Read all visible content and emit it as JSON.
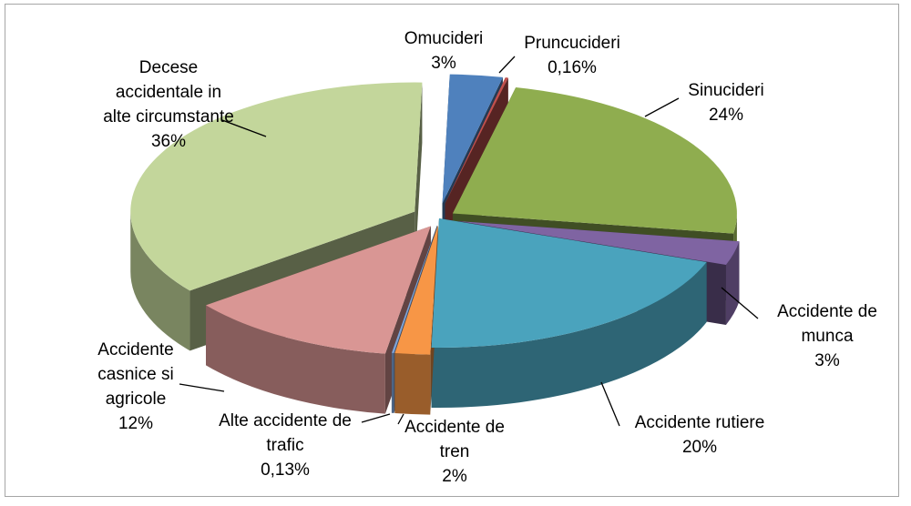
{
  "chart_data": {
    "type": "pie",
    "style": "3d-exploded",
    "slices": [
      {
        "name": "Omucideri",
        "label_lines": [
          "Omucideri"
        ],
        "value_label": "3%",
        "value": 3,
        "color": "#4f81bd"
      },
      {
        "name": "Pruncucideri",
        "label_lines": [
          "Pruncucideri"
        ],
        "value_label": "0,16%",
        "value": 0.16,
        "color": "#c0504d"
      },
      {
        "name": "Sinucideri",
        "label_lines": [
          "Sinucideri"
        ],
        "value_label": "24%",
        "value": 24,
        "color": "#8fad4f"
      },
      {
        "name": "Accidente de munca",
        "label_lines": [
          "Accidente de",
          "munca"
        ],
        "value_label": "3%",
        "value": 3,
        "color": "#7f64a2"
      },
      {
        "name": "Accidente rutiere",
        "label_lines": [
          "Accidente rutiere"
        ],
        "value_label": "20%",
        "value": 20,
        "color": "#4aa3bd"
      },
      {
        "name": "Accidente de tren",
        "label_lines": [
          "Accidente de",
          "tren"
        ],
        "value_label": "2%",
        "value": 2,
        "color": "#f79646"
      },
      {
        "name": "Alte accidente de trafic",
        "label_lines": [
          "Alte accidente de",
          "trafic"
        ],
        "value_label": "0,13%",
        "value": 0.13,
        "color": "#7ea3d6"
      },
      {
        "name": "Accidente casnice si agricole",
        "label_lines": [
          "Accidente",
          "casnice si",
          "agricole"
        ],
        "value_label": "12%",
        "value": 12,
        "color": "#d99694"
      },
      {
        "name": "Decese accidentale in alte circumstante",
        "label_lines": [
          "Decese",
          "accidentale in",
          "alte circumstante"
        ],
        "value_label": "36%",
        "value": 36,
        "color": "#c3d69b"
      }
    ]
  }
}
